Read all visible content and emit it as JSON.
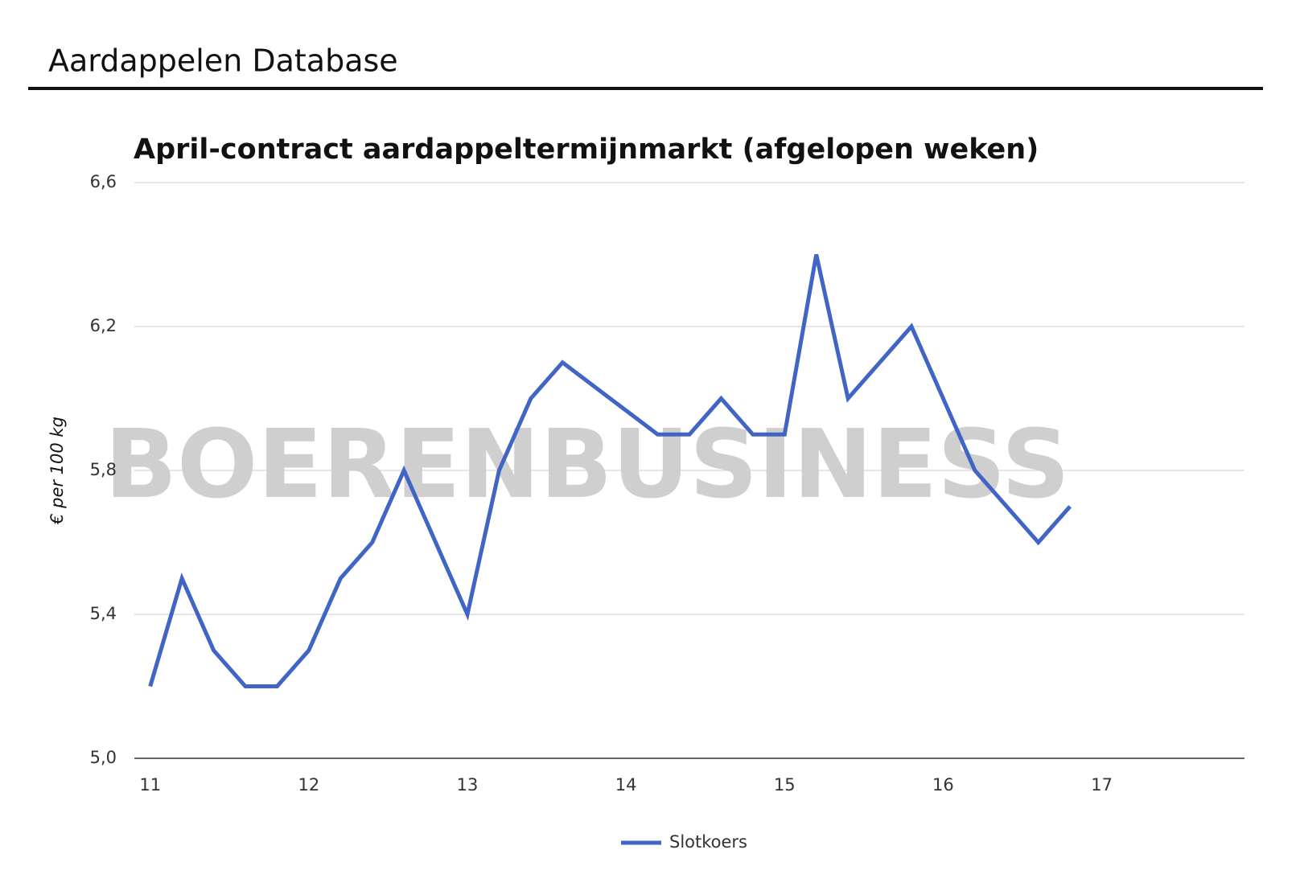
{
  "header": {
    "title": "Aardappelen Database"
  },
  "chart_data": {
    "type": "line",
    "title": "April-contract aardappeltermijnmarkt (afgelopen weken)",
    "watermark": "BOERENBUSINESS",
    "y_label": "€ per 100 kg",
    "x": [
      11.0,
      11.2,
      11.4,
      11.6,
      11.8,
      12.0,
      12.2,
      12.4,
      12.6,
      12.8,
      13.0,
      13.2,
      13.4,
      13.6,
      14.2,
      14.4,
      14.6,
      14.8,
      15.0,
      15.2,
      15.4,
      15.6,
      15.8,
      16.0,
      16.2,
      16.4,
      16.6,
      16.8
    ],
    "series": [
      {
        "name": "Slotkoers",
        "color": "#4065c4",
        "values": [
          5.2,
          5.5,
          5.3,
          5.2,
          5.2,
          5.3,
          5.5,
          5.6,
          5.8,
          5.6,
          5.4,
          5.8,
          6.0,
          6.1,
          5.9,
          5.9,
          6.0,
          5.9,
          5.9,
          6.4,
          6.0,
          6.1,
          6.2,
          6.0,
          5.8,
          5.7,
          5.6,
          5.7
        ]
      }
    ],
    "xlim": [
      10.9,
      17.9
    ],
    "xticks": [
      11,
      12,
      13,
      14,
      15,
      16,
      17
    ],
    "ylim": [
      5.0,
      6.6
    ],
    "yticks": [
      {
        "value": 5.0,
        "label": "5,0"
      },
      {
        "value": 5.4,
        "label": "5,4"
      },
      {
        "value": 5.8,
        "label": "5,8"
      },
      {
        "value": 6.2,
        "label": "6,2"
      },
      {
        "value": 6.6,
        "label": "6,6"
      }
    ],
    "grid": true,
    "legend": "bottom"
  }
}
